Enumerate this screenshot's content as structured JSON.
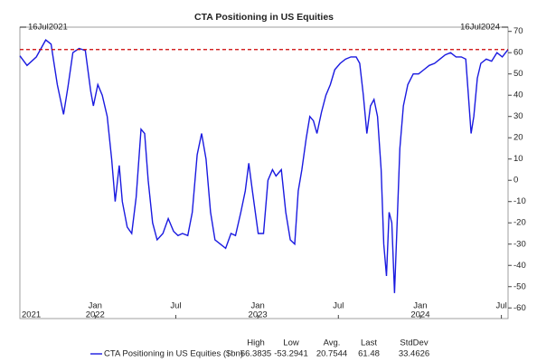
{
  "chart_data": {
    "type": "line",
    "title": "CTA Positioning in US Equities",
    "start_label": "16Jul2021",
    "end_label": "16Jul2024",
    "xlim": [
      "2021-07-16",
      "2024-07-16"
    ],
    "xticks": [
      {
        "value": "2022-01-01",
        "label": "Jan"
      },
      {
        "value": "2022-07-01",
        "label": "Jul"
      },
      {
        "value": "2023-01-01",
        "label": "Jan"
      },
      {
        "value": "2023-07-01",
        "label": "Jul"
      },
      {
        "value": "2024-01-01",
        "label": "Jan"
      },
      {
        "value": "2024-07-01",
        "label": "Jul"
      }
    ],
    "year_ticks": [
      {
        "value": "2021-07-16",
        "label": "2021"
      },
      {
        "value": "2022-01-01",
        "label": "2022"
      },
      {
        "value": "2023-01-01",
        "label": "2023"
      },
      {
        "value": "2024-01-01",
        "label": "2024"
      }
    ],
    "ylim": [
      -65,
      72
    ],
    "yticks": [
      70,
      60,
      50,
      40,
      30,
      20,
      10,
      0,
      -10,
      -20,
      -30,
      -40,
      -50,
      -60
    ],
    "last_line": true,
    "last_line_color": "#cc0000",
    "x": [
      "2021-07-16",
      "2021-08-01",
      "2021-08-22",
      "2021-09-12",
      "2021-09-24",
      "2021-10-08",
      "2021-10-22",
      "2021-11-01",
      "2021-11-12",
      "2021-11-26",
      "2021-12-10",
      "2021-12-22",
      "2021-12-28",
      "2022-01-07",
      "2022-01-17",
      "2022-01-28",
      "2022-02-07",
      "2022-02-15",
      "2022-02-24",
      "2022-03-03",
      "2022-03-14",
      "2022-03-24",
      "2022-04-03",
      "2022-04-14",
      "2022-04-22",
      "2022-04-30",
      "2022-05-10",
      "2022-05-20",
      "2022-06-02",
      "2022-06-14",
      "2022-06-26",
      "2022-07-06",
      "2022-07-16",
      "2022-07-28",
      "2022-08-07",
      "2022-08-18",
      "2022-08-28",
      "2022-09-07",
      "2022-09-17",
      "2022-09-27",
      "2022-10-09",
      "2022-10-21",
      "2022-11-02",
      "2022-11-12",
      "2022-11-24",
      "2022-12-04",
      "2022-12-12",
      "2022-12-20",
      "2023-01-02",
      "2023-01-14",
      "2023-01-24",
      "2023-02-03",
      "2023-02-11",
      "2023-02-23",
      "2023-03-05",
      "2023-03-15",
      "2023-03-25",
      "2023-04-02",
      "2023-04-10",
      "2023-04-20",
      "2023-04-28",
      "2023-05-06",
      "2023-05-14",
      "2023-05-24",
      "2023-06-03",
      "2023-06-13",
      "2023-06-23",
      "2023-07-05",
      "2023-07-17",
      "2023-07-29",
      "2023-08-10",
      "2023-08-18",
      "2023-08-26",
      "2023-09-03",
      "2023-09-11",
      "2023-09-19",
      "2023-09-27",
      "2023-10-05",
      "2023-10-11",
      "2023-10-17",
      "2023-10-23",
      "2023-10-29",
      "2023-11-04",
      "2023-11-10",
      "2023-11-16",
      "2023-11-24",
      "2023-12-04",
      "2023-12-16",
      "2023-12-28",
      "2024-01-09",
      "2024-01-21",
      "2024-02-02",
      "2024-02-14",
      "2024-02-26",
      "2024-03-09",
      "2024-03-21",
      "2024-04-02",
      "2024-04-12",
      "2024-04-18",
      "2024-04-24",
      "2024-04-30",
      "2024-05-08",
      "2024-05-16",
      "2024-05-28",
      "2024-06-09",
      "2024-06-21",
      "2024-07-03",
      "2024-07-16"
    ],
    "series": [
      {
        "name": "CTA Positioning in US Equities ($bn)",
        "color": "#1a1ae0",
        "values": [
          58.5,
          54,
          58,
          66,
          64,
          45,
          31,
          44,
          60,
          62,
          61,
          42,
          35,
          45,
          40,
          30,
          10,
          -10,
          7,
          -10,
          -22,
          -25,
          -8,
          24,
          22,
          0,
          -20,
          -28,
          -25,
          -18,
          -24,
          -26,
          -25,
          -26,
          -15,
          12,
          22,
          10,
          -15,
          -28,
          -30,
          -32,
          -25,
          -26,
          -15,
          -5,
          8,
          -5,
          -25,
          -25,
          0,
          5,
          2,
          5,
          -15,
          -28,
          -30,
          -5,
          5,
          20,
          30,
          28,
          22,
          32,
          40,
          45,
          52,
          55,
          57,
          58,
          58,
          55,
          40,
          22,
          35,
          38,
          30,
          5,
          -30,
          -45,
          -15,
          -20,
          -53,
          -20,
          15,
          35,
          45,
          50,
          50,
          52,
          54,
          55,
          57,
          59,
          60,
          58,
          58,
          57,
          40,
          22,
          30,
          48,
          55,
          57,
          56,
          60,
          58,
          61.48
        ]
      }
    ],
    "stats": {
      "headers": [
        "High",
        "Low",
        "Avg.",
        "Last",
        "StdDev"
      ],
      "values": [
        66.3835,
        -53.2941,
        20.7544,
        61.48,
        33.4626
      ]
    }
  }
}
